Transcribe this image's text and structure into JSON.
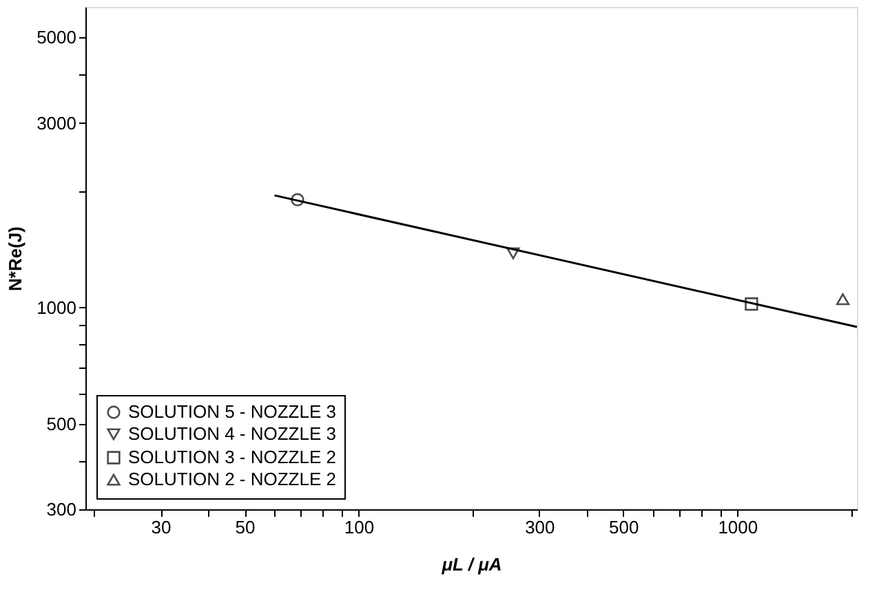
{
  "chart_data": {
    "type": "scatter",
    "xlabel": "μL / μA",
    "ylabel": "N*Re(J)",
    "log": "xy",
    "xlim": [
      19,
      2070
    ],
    "ylim": [
      300,
      6000
    ],
    "xticks": [
      {
        "value": 20,
        "label": null
      },
      30,
      {
        "value": 40,
        "label": null
      },
      50,
      {
        "value": 60,
        "label": null
      },
      {
        "value": 70,
        "label": null
      },
      {
        "value": 80,
        "label": null
      },
      {
        "value": 90,
        "label": null
      },
      100,
      {
        "value": 200,
        "label": null
      },
      300,
      {
        "value": 400,
        "label": null
      },
      500,
      {
        "value": 600,
        "label": null
      },
      {
        "value": 700,
        "label": null
      },
      {
        "value": 800,
        "label": null
      },
      {
        "value": 900,
        "label": null
      },
      1000,
      {
        "value": 2000,
        "label": null
      }
    ],
    "yticks": [
      300,
      {
        "value": 400,
        "label": null
      },
      500,
      {
        "value": 600,
        "label": null
      },
      {
        "value": 700,
        "label": null
      },
      {
        "value": 800,
        "label": null
      },
      {
        "value": 900,
        "label": null
      },
      1000,
      {
        "value": 2000,
        "label": null
      },
      3000,
      {
        "value": 4000,
        "label": null
      },
      5000
    ],
    "grid": false,
    "legend": "bottom left",
    "series": [
      {
        "name": "SOLUTION 5 - NOZZLE 3",
        "color": "#000000",
        "marker": "circle",
        "x": [
          69
        ],
        "values": [
          1900
        ]
      },
      {
        "name": "SOLUTION 4 - NOZZLE 3",
        "color": "#000000",
        "marker": "triangle-down",
        "x": [
          256
        ],
        "values": [
          1380
        ]
      },
      {
        "name": "SOLUTION 3 - NOZZLE 2",
        "color": "#000000",
        "marker": "square",
        "x": [
          1090
        ],
        "values": [
          1020
        ]
      },
      {
        "name": "SOLUTION 2 - NOZZLE 2",
        "color": "#000000",
        "marker": "triangle",
        "x": [
          1900
        ],
        "values": [
          1050
        ]
      },
      {
        "type": "line",
        "color": "#000000",
        "line_style": "solid",
        "marker": "none",
        "x": [
          60,
          2070
        ],
        "values": [
          1950,
          890
        ]
      }
    ]
  }
}
